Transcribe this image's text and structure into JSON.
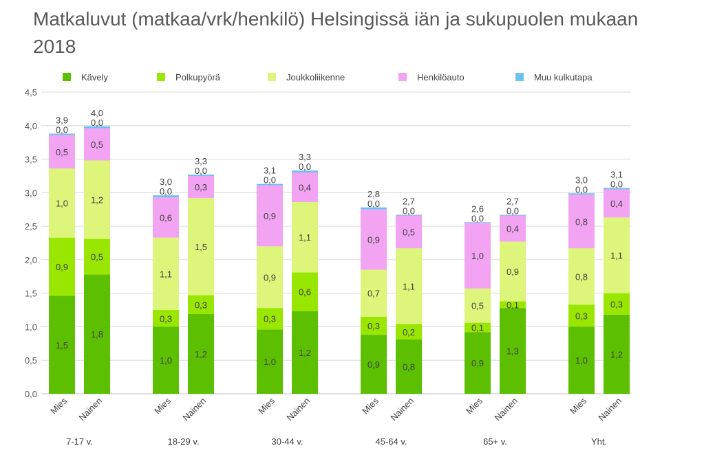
{
  "title": "Matkaluvut (matkaa/vrk/henkilö) Helsingissä iän ja sukupuolen mukaan 2018",
  "chart_data": {
    "type": "bar",
    "stacked": true,
    "title": "Matkaluvut (matkaa/vrk/henkilö) Helsingissä iän ja sukupuolen mukaan 2018",
    "xlabel": "",
    "ylabel": "",
    "ylim": [
      0,
      4.5
    ],
    "yticks": [
      "0,0",
      "0,5",
      "1,0",
      "1,5",
      "2,0",
      "2,5",
      "3,0",
      "3,5",
      "4,0",
      "4,5"
    ],
    "grid": true,
    "legend_position": "top",
    "groups": [
      {
        "label": "7-17 v.",
        "categories": [
          "Mies",
          "Nainen"
        ]
      },
      {
        "label": "18-29 v.",
        "categories": [
          "Mies",
          "Nainen"
        ]
      },
      {
        "label": "30-44 v.",
        "categories": [
          "Mies",
          "Nainen"
        ]
      },
      {
        "label": "45-64 v.",
        "categories": [
          "Mies",
          "Nainen"
        ]
      },
      {
        "label": "65+ v.",
        "categories": [
          "Mies",
          "Nainen"
        ]
      },
      {
        "label": "Yht.",
        "categories": [
          "Mies",
          "Nainen"
        ]
      }
    ],
    "series": [
      {
        "name": "Kävely",
        "color": "#5cbf00",
        "values": [
          1.46,
          1.78,
          1.0,
          1.19,
          0.96,
          1.23,
          0.88,
          0.81,
          0.92,
          1.28,
          1.0,
          1.18
        ],
        "labels": [
          "1,5",
          "1,8",
          "1,0",
          "1,2",
          "1,0",
          "1,2",
          "0,9",
          "0,8",
          "0,9",
          "1,3",
          "1,0",
          "1,2"
        ]
      },
      {
        "name": "Polkupyörä",
        "color": "#99e600",
        "values": [
          0.87,
          0.53,
          0.25,
          0.28,
          0.32,
          0.58,
          0.27,
          0.23,
          0.14,
          0.1,
          0.33,
          0.32
        ],
        "labels": [
          "0,9",
          "0,5",
          "0,3",
          "0,3",
          "0,3",
          "0,6",
          "0,3",
          "0,2",
          "0,1",
          "0,1",
          "0,3",
          "0,3"
        ]
      },
      {
        "name": "Joukkoliikenne",
        "color": "#dcf57a",
        "values": [
          1.03,
          1.17,
          1.08,
          1.45,
          0.92,
          1.05,
          0.7,
          1.13,
          0.51,
          0.89,
          0.84,
          1.13
        ],
        "labels": [
          "1,0",
          "1,2",
          "1,1",
          "1,5",
          "0,9",
          "1,1",
          "0,7",
          "1,1",
          "0,5",
          "0,9",
          "0,8",
          "1,1"
        ]
      },
      {
        "name": "Henkilöauto",
        "color": "#f2a4f2",
        "values": [
          0.5,
          0.48,
          0.6,
          0.33,
          0.91,
          0.44,
          0.9,
          0.49,
          0.98,
          0.39,
          0.8,
          0.42
        ],
        "labels": [
          "0,5",
          "0,5",
          "0,6",
          "0,3",
          "0,9",
          "0,4",
          "0,9",
          "0,5",
          "1,0",
          "0,4",
          "0,8",
          "0,4"
        ]
      },
      {
        "name": "Muu kulkutapa",
        "color": "#6ec0f0",
        "values": [
          0.02,
          0.03,
          0.03,
          0.02,
          0.02,
          0.03,
          0.03,
          0.01,
          0.01,
          0.01,
          0.02,
          0.02
        ],
        "labels": [
          "0,0",
          "0,0",
          "0,0",
          "0,0",
          "0,0",
          "0,0",
          "0,0",
          "0,0",
          "0,0",
          "0,0",
          "0,0",
          "0,0"
        ]
      }
    ],
    "totals": [
      "3,9",
      "4,0",
      "3,0",
      "3,3",
      "3,1",
      "3,3",
      "2,8",
      "2,7",
      "2,6",
      "2,7",
      "3,0",
      "3,1"
    ]
  }
}
